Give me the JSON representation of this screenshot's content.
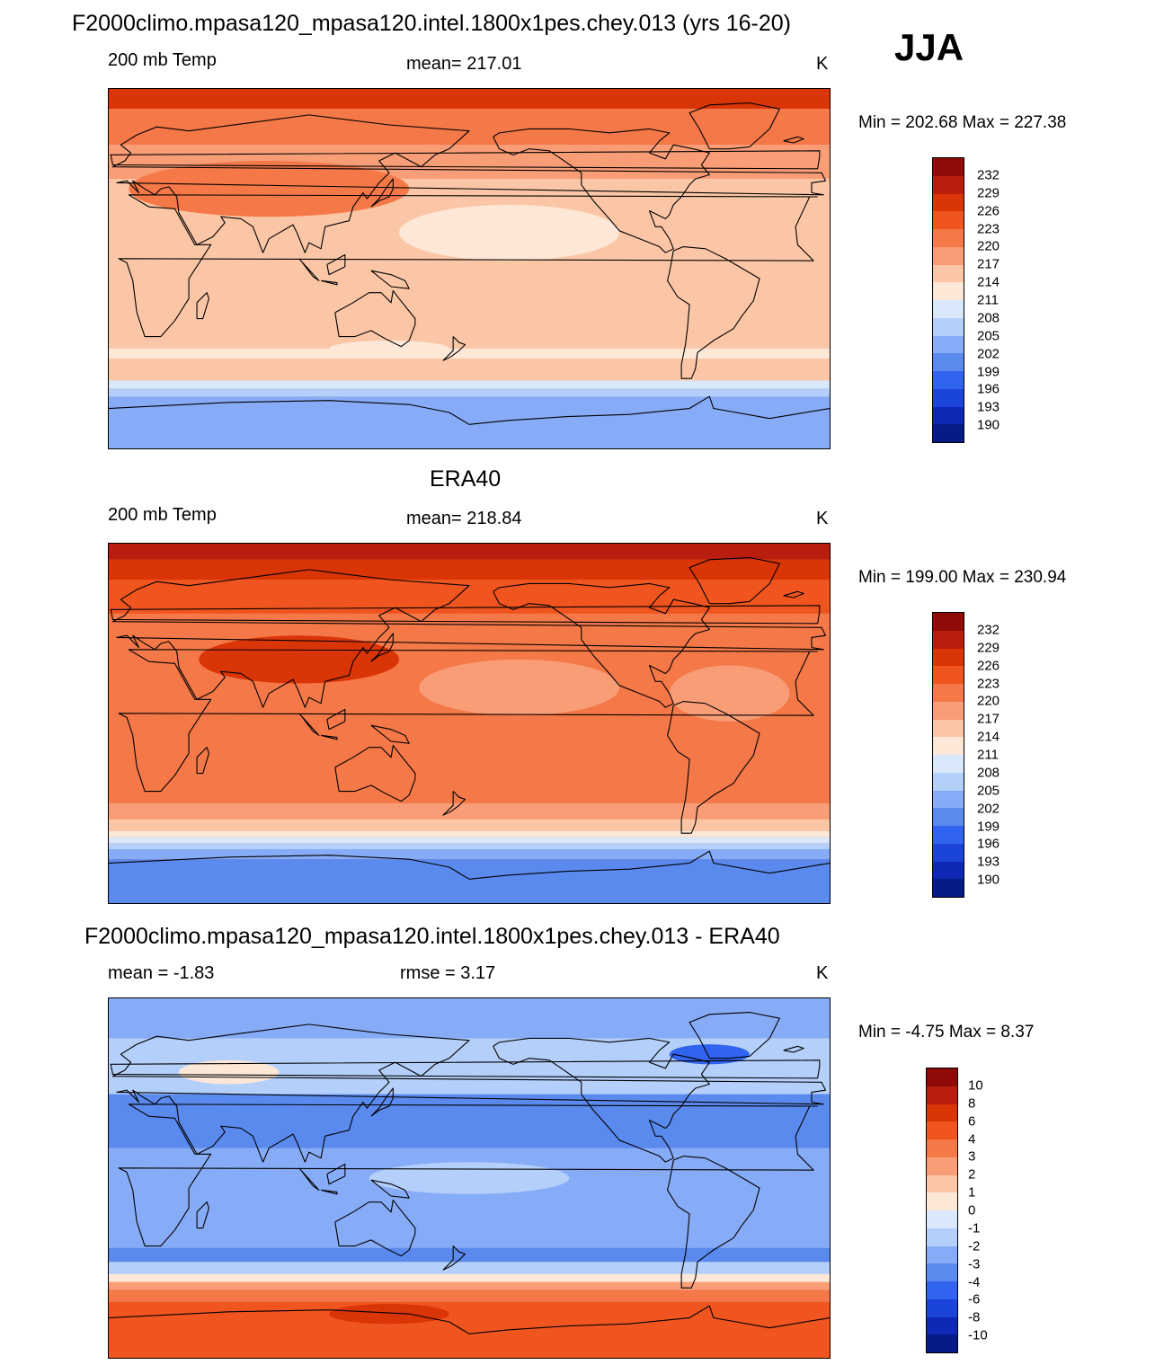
{
  "header": {
    "title": "F2000climo.mpasa120_mpasa120.intel.1800x1pes.chey.013 (yrs 16-20)",
    "season": "JJA"
  },
  "panels": [
    {
      "id": "model",
      "left_label": "200 mb Temp",
      "center_label": "mean= 217.01",
      "units": "K",
      "minmax": "Min = 202.68 Max = 227.38",
      "colorbar_labels": [
        "232",
        "229",
        "226",
        "223",
        "220",
        "217",
        "214",
        "211",
        "208",
        "205",
        "202",
        "199",
        "196",
        "193",
        "190"
      ],
      "palette": [
        "#8e0b08",
        "#b81d0d",
        "#d93507",
        "#f0541f",
        "#f57848",
        "#f99d77",
        "#fbc6a5",
        "#fde8d8",
        "#d9e8fb",
        "#b4cffa",
        "#87acf7",
        "#5b8aef",
        "#3063ee",
        "#1b44d9",
        "#0c28b4",
        "#061b85"
      ],
      "field": {
        "base": "#fbc6a5",
        "bands": [
          {
            "lat1": 90,
            "lat2": 80,
            "color": "#d93507"
          },
          {
            "lat1": 80,
            "lat2": 62,
            "color": "#f57848"
          },
          {
            "lat1": 62,
            "lat2": 45,
            "color": "#f99d77"
          },
          {
            "lat1": -40,
            "lat2": -45,
            "color": "#fde8d8"
          },
          {
            "lat1": -45,
            "lat2": -56,
            "color": "#fbc6a5"
          },
          {
            "lat1": -56,
            "lat2": -60,
            "color": "#d9e8fb"
          },
          {
            "lat1": -60,
            "lat2": -64,
            "color": "#b4cffa"
          },
          {
            "lat1": -64,
            "lat2": -90,
            "color": "#87acf7"
          }
        ],
        "blobs": [
          {
            "lon": 80,
            "lat": 40,
            "rx": 70,
            "ry": 14,
            "color": "#f57848"
          },
          {
            "lon": 200,
            "lat": 18,
            "rx": 55,
            "ry": 14,
            "color": "#fde8d8"
          },
          {
            "lon": 140,
            "lat": -40,
            "rx": 30,
            "ry": 4,
            "color": "#fde8d8"
          }
        ]
      }
    },
    {
      "id": "obs",
      "title": "ERA40",
      "left_label": "200 mb Temp",
      "center_label": "mean= 218.84",
      "units": "K",
      "minmax": "Min = 199.00 Max = 230.94",
      "colorbar_labels": [
        "232",
        "229",
        "226",
        "223",
        "220",
        "217",
        "214",
        "211",
        "208",
        "205",
        "202",
        "199",
        "196",
        "193",
        "190"
      ],
      "palette": [
        "#8e0b08",
        "#b81d0d",
        "#d93507",
        "#f0541f",
        "#f57848",
        "#f99d77",
        "#fbc6a5",
        "#fde8d8",
        "#d9e8fb",
        "#b4cffa",
        "#87acf7",
        "#5b8aef",
        "#3063ee",
        "#1b44d9",
        "#0c28b4",
        "#061b85"
      ],
      "field": {
        "base": "#f57848",
        "bands": [
          {
            "lat1": 90,
            "lat2": 82,
            "color": "#b81d0d"
          },
          {
            "lat1": 82,
            "lat2": 72,
            "color": "#d93507"
          },
          {
            "lat1": 72,
            "lat2": 55,
            "color": "#f0541f"
          },
          {
            "lat1": -40,
            "lat2": -48,
            "color": "#f99d77"
          },
          {
            "lat1": -48,
            "lat2": -54,
            "color": "#fbc6a5"
          },
          {
            "lat1": -54,
            "lat2": -57,
            "color": "#fde8d8"
          },
          {
            "lat1": -57,
            "lat2": -60,
            "color": "#d9e8fb"
          },
          {
            "lat1": -60,
            "lat2": -63,
            "color": "#b4cffa"
          },
          {
            "lat1": -63,
            "lat2": -68,
            "color": "#87acf7"
          },
          {
            "lat1": -68,
            "lat2": -90,
            "color": "#5b8aef"
          }
        ],
        "blobs": [
          {
            "lon": 95,
            "lat": 32,
            "rx": 50,
            "ry": 12,
            "color": "#d93507"
          },
          {
            "lon": 205,
            "lat": 18,
            "rx": 50,
            "ry": 14,
            "color": "#f99d77"
          },
          {
            "lon": 310,
            "lat": 15,
            "rx": 30,
            "ry": 14,
            "color": "#f99d77"
          }
        ]
      }
    },
    {
      "id": "diff",
      "title": "F2000climo.mpasa120_mpasa120.intel.1800x1pes.chey.013 - ERA40",
      "left_label": "mean =  -1.83",
      "center_label": "rmse =   3.17",
      "units": "K",
      "minmax": "Min =  -4.75 Max =   8.37",
      "colorbar_labels": [
        "10",
        "8",
        "6",
        "4",
        "3",
        "2",
        "1",
        "0",
        "-1",
        "-2",
        "-3",
        "-4",
        "-6",
        "-8",
        "-10"
      ],
      "palette": [
        "#8e0b08",
        "#b81d0d",
        "#d93507",
        "#f0541f",
        "#f57848",
        "#f99d77",
        "#fbc6a5",
        "#fde8d8",
        "#d9e8fb",
        "#b4cffa",
        "#87acf7",
        "#5b8aef",
        "#3063ee",
        "#1b44d9",
        "#0c28b4",
        "#061b85"
      ],
      "field": {
        "base": "#87acf7",
        "bands": [
          {
            "lat1": 90,
            "lat2": 70,
            "color": "#87acf7"
          },
          {
            "lat1": 70,
            "lat2": 42,
            "color": "#b4cffa"
          },
          {
            "lat1": 42,
            "lat2": 15,
            "color": "#5b8aef"
          },
          {
            "lat1": -35,
            "lat2": -42,
            "color": "#5b8aef"
          },
          {
            "lat1": -42,
            "lat2": -48,
            "color": "#b4cffa"
          },
          {
            "lat1": -48,
            "lat2": -52,
            "color": "#fde8d8"
          },
          {
            "lat1": -52,
            "lat2": -56,
            "color": "#f99d77"
          },
          {
            "lat1": -56,
            "lat2": -62,
            "color": "#f57848"
          },
          {
            "lat1": -62,
            "lat2": -90,
            "color": "#f0541f"
          }
        ],
        "blobs": [
          {
            "lon": 60,
            "lat": 53,
            "rx": 25,
            "ry": 6,
            "color": "#fde8d8"
          },
          {
            "lon": 300,
            "lat": 62,
            "rx": 20,
            "ry": 5,
            "color": "#3063ee"
          },
          {
            "lon": 140,
            "lat": -68,
            "rx": 30,
            "ry": 5,
            "color": "#d93507"
          },
          {
            "lon": 180,
            "lat": 0,
            "rx": 50,
            "ry": 8,
            "color": "#b4cffa"
          }
        ]
      }
    }
  ]
}
